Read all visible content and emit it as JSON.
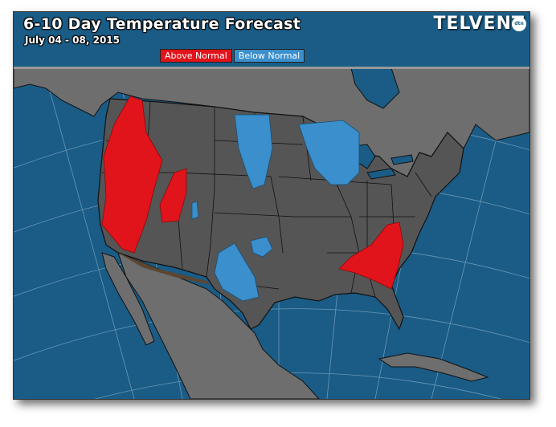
{
  "title": "6-10 Day Temperature Forecast",
  "subtitle": "July 04 - 08, 2015",
  "brand": "TELVENT",
  "brand_badge": "dtn",
  "legend": {
    "above_label": "Above Normal",
    "below_label": "Below Normal"
  },
  "colors": {
    "ocean": "#1a5c86",
    "land": "#6e6e6e",
    "us_land": "#555555",
    "above_normal": "#e0141a",
    "below_normal": "#3a8fcc",
    "border": "#111111"
  }
}
